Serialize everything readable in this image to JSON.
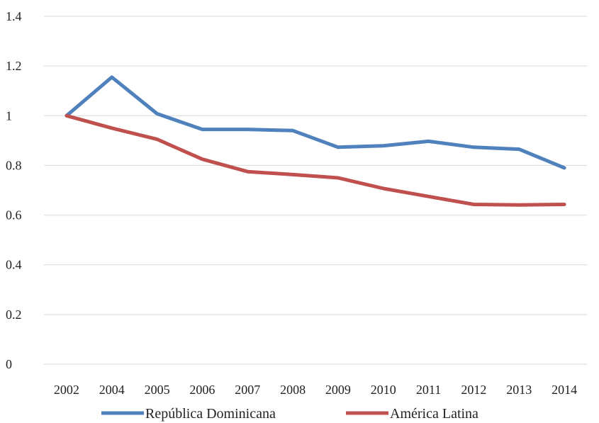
{
  "chart_data": {
    "type": "line",
    "categories": [
      "2002",
      "2004",
      "2005",
      "2006",
      "2007",
      "2008",
      "2009",
      "2010",
      "2011",
      "2012",
      "2013",
      "2014"
    ],
    "series": [
      {
        "name": "República Dominicana",
        "color": "#4f81bd",
        "values": [
          1.0,
          1.155,
          1.008,
          0.945,
          0.945,
          0.94,
          0.873,
          0.879,
          0.897,
          0.873,
          0.865,
          0.79
        ]
      },
      {
        "name": "América Latina",
        "color": "#c0504d",
        "values": [
          1.0,
          0.95,
          0.905,
          0.825,
          0.775,
          0.763,
          0.75,
          0.707,
          0.675,
          0.643,
          0.641,
          0.643
        ]
      }
    ],
    "ylim": [
      0,
      1.4
    ],
    "yticks": [
      "0",
      "0.2",
      "0.4",
      "0.6",
      "0.8",
      "1",
      "1.2",
      "1.4"
    ],
    "grid": true,
    "legend_position": "bottom"
  }
}
